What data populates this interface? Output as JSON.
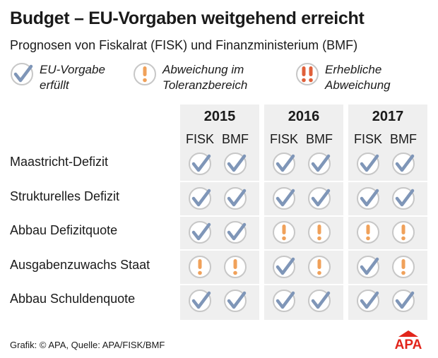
{
  "title": "Budget – EU-Vorgaben weitgehend erreicht",
  "subtitle": "Prognosen von Fiskalrat (FISK) und Finanzministerium (BMF)",
  "legend": [
    {
      "key": "check",
      "line1": "EU-Vorgabe",
      "line2": "erfüllt",
      "icon": "check-icon"
    },
    {
      "key": "warn",
      "line1": "Abweichung im",
      "line2": "Toleranzbereich",
      "icon": "exclamation-icon"
    },
    {
      "key": "severe",
      "line1": "Erhebliche",
      "line2": "Abweichung",
      "icon": "double-exclamation-icon"
    }
  ],
  "colors": {
    "check": "#7f96b8",
    "warn": "#f0a15a",
    "severe": "#e0603a",
    "ring": "#c7c7c7",
    "panel": "#efefef",
    "brand": "#e2251b"
  },
  "chart_data": {
    "type": "table",
    "years": [
      "2015",
      "2016",
      "2017"
    ],
    "sources": [
      "FISK",
      "BMF"
    ],
    "rows": [
      {
        "label": "Maastricht-Defizit",
        "values": [
          "check",
          "check",
          "check",
          "check",
          "check",
          "check"
        ]
      },
      {
        "label": "Strukturelles Defizit",
        "values": [
          "check",
          "check",
          "check",
          "check",
          "check",
          "check"
        ]
      },
      {
        "label": "Abbau Defizitquote",
        "values": [
          "check",
          "check",
          "warn",
          "warn",
          "warn",
          "warn"
        ]
      },
      {
        "label": "Ausgabenzuwachs Staat",
        "values": [
          "warn",
          "warn",
          "check",
          "warn",
          "check",
          "warn"
        ]
      },
      {
        "label": "Abbau Schuldenquote",
        "values": [
          "check",
          "check",
          "check",
          "check",
          "check",
          "check"
        ]
      }
    ]
  },
  "footer": "Grafik: © APA, Quelle: APA/FISK/BMF",
  "logo": "APA"
}
